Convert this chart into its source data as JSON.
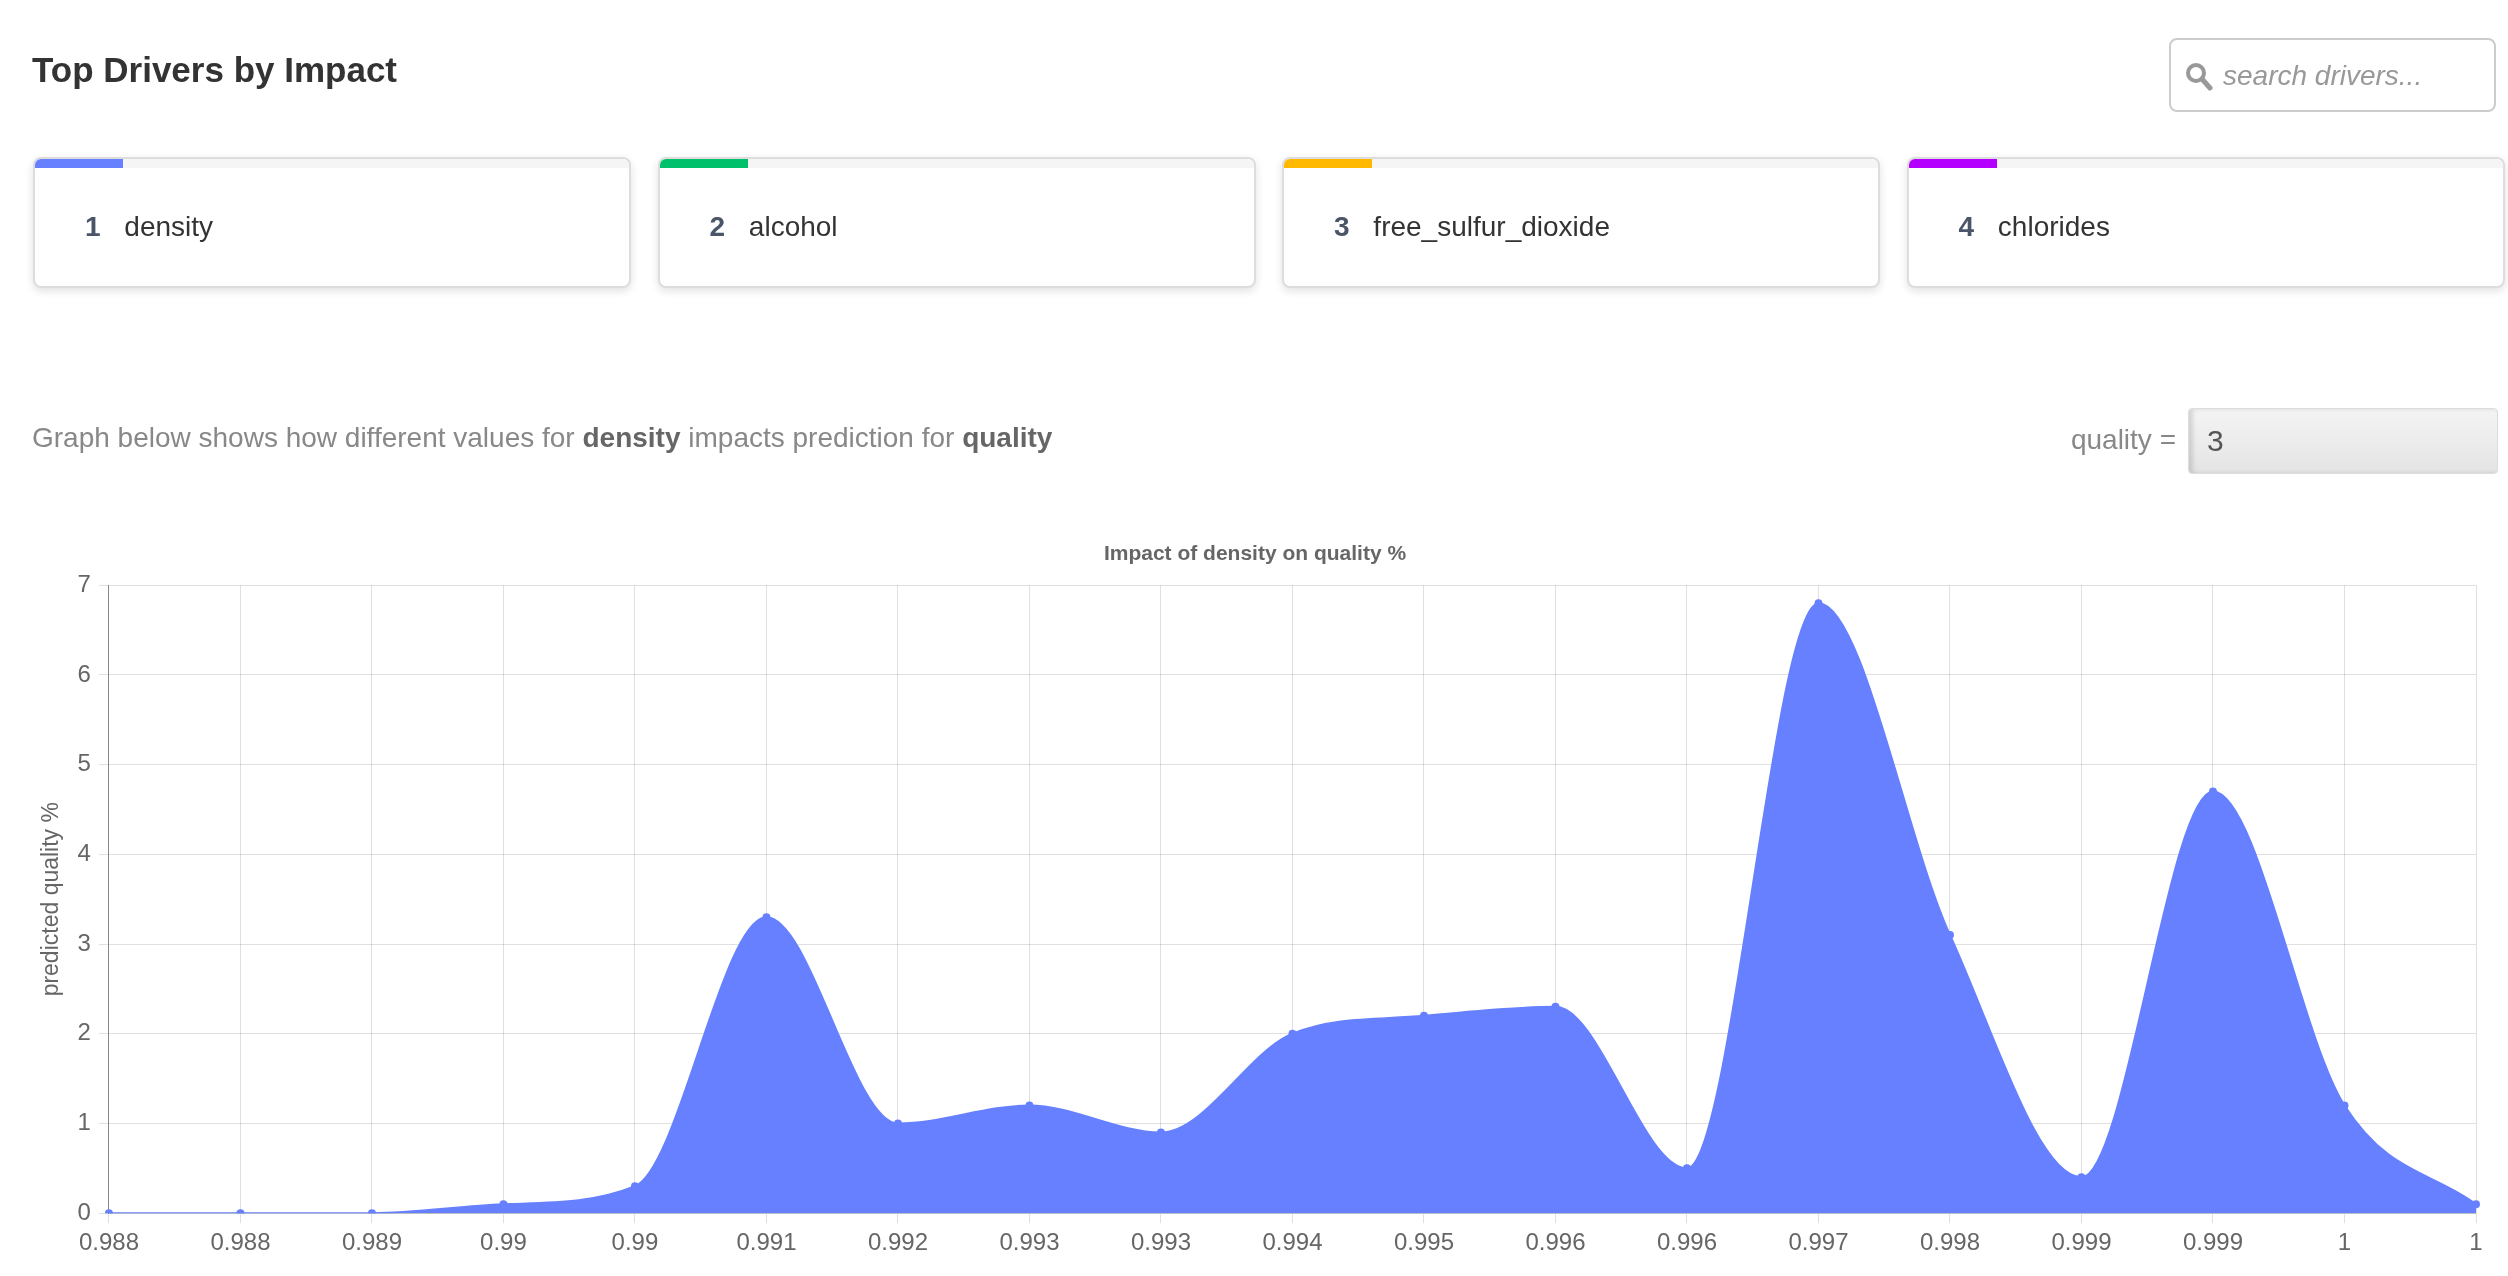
{
  "chart_data": [
    {
      "type": "other",
      "title": "Top Drivers by Impact",
      "annotations": [
        "search drivers...",
        "1 density",
        "2 alcohol",
        "3 free_sulfur_dioxide",
        "4 chlorides",
        "Graph below shows how different values for",
        "density",
        "impacts prediction for",
        "quality",
        "quality =",
        "3"
      ],
      "colors": [
        "#6680ff",
        "#00c06b",
        "#ffb900",
        "#b300ff"
      ]
    },
    {
      "type": "area",
      "title": "Impact of density on quality %",
      "ylabel": "predicted quality %",
      "categories": [
        "0.988",
        "0.988",
        "0.989",
        "0.99",
        "0.99",
        "0.991",
        "0.992",
        "0.993",
        "0.993",
        "0.994",
        "0.995",
        "0.996",
        "0.996",
        "0.997",
        "0.998",
        "0.999",
        "0.999",
        "1",
        "1"
      ],
      "values": [
        0,
        0,
        0,
        0.1,
        0.3,
        3.3,
        1.0,
        1.2,
        0.9,
        2.0,
        2.2,
        2.3,
        0.5,
        6.8,
        3.1,
        0.4,
        4.7,
        1.2,
        0.1
      ],
      "color": "#6680ff",
      "ylim": [
        0,
        7
      ],
      "yticks": [
        0,
        1,
        2,
        3,
        4,
        5,
        6,
        7
      ],
      "grid": true,
      "marker": "circle"
    }
  ]
}
